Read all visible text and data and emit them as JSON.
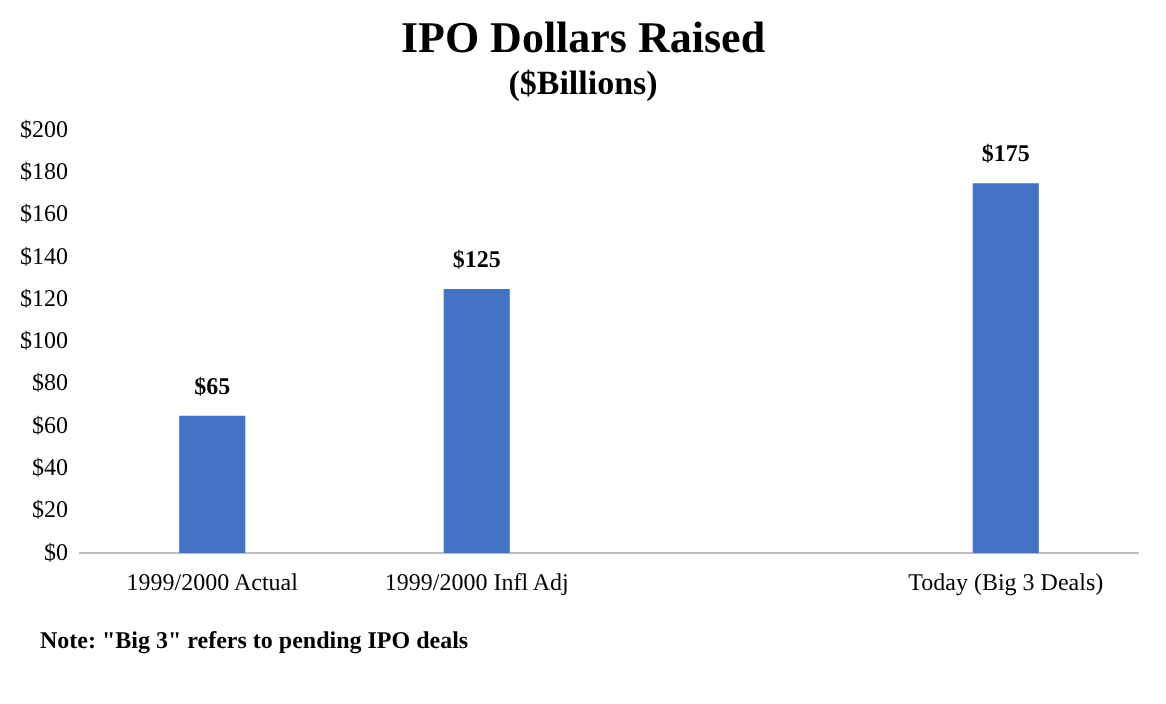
{
  "chart_data": {
    "type": "bar",
    "title": "IPO Dollars Raised",
    "subtitle": "($Billions)",
    "categories": [
      "1999/2000 Actual",
      "1999/2000 Infl Adj",
      null,
      "Today (Big 3 Deals)"
    ],
    "values": [
      65,
      125,
      null,
      175
    ],
    "value_labels": [
      "$65",
      "$125",
      null,
      "$175"
    ],
    "color": "#4472c4",
    "ylim": [
      0,
      200
    ],
    "yticks": [
      {
        "value": 0,
        "label": "$0"
      },
      {
        "value": 20,
        "label": "$20"
      },
      {
        "value": 40,
        "label": "$40"
      },
      {
        "value": 60,
        "label": "$60"
      },
      {
        "value": 80,
        "label": "$80"
      },
      {
        "value": 100,
        "label": "$100"
      },
      {
        "value": 120,
        "label": "$120"
      },
      {
        "value": 140,
        "label": "$140"
      },
      {
        "value": 160,
        "label": "$160"
      },
      {
        "value": 180,
        "label": "$180"
      },
      {
        "value": 200,
        "label": "$200"
      }
    ],
    "grid": false,
    "legend": false,
    "annotations": [
      "Note: \"Big 3\" refers to pending IPO deals"
    ]
  }
}
